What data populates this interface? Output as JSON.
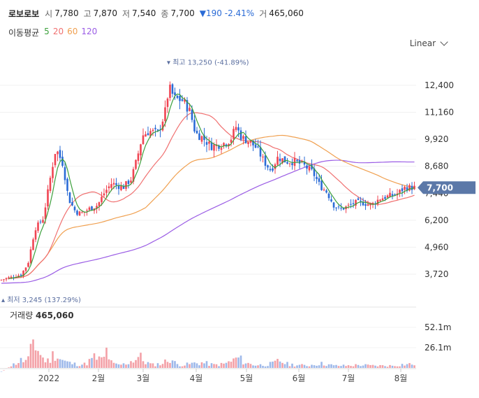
{
  "header": {
    "name": "로보로보",
    "open_label": "시",
    "open": "7,780",
    "high_label": "고",
    "high": "7,870",
    "low_label": "저",
    "low": "7,540",
    "close_label": "종",
    "close": "7,700",
    "change": "▼190 -2.41%",
    "volume_label": "거",
    "volume": "465,060"
  },
  "ma_legend": {
    "title": "이동평균",
    "items": [
      {
        "label": "5",
        "color": "#3ca03c"
      },
      {
        "label": "20",
        "color": "#f07070"
      },
      {
        "label": "60",
        "color": "#f0a050"
      },
      {
        "label": "120",
        "color": "#9b5de5"
      }
    ]
  },
  "scale_selector": "Linear",
  "price_tag": "7,700",
  "colors": {
    "up": "#f04452",
    "down": "#2a6bd6",
    "tag": "#5b78a8"
  },
  "chart_data": [
    {
      "type": "candlestick",
      "y_ticks": [
        "12,400",
        "11,160",
        "9,920",
        "8,680",
        "7,440",
        "6,200",
        "4,960",
        "3,720"
      ],
      "ylim": [
        3200,
        13700
      ],
      "x_ticks": [
        "2022",
        "2월",
        "3월",
        "4월",
        "5월",
        "6월",
        "7월",
        "8월"
      ],
      "annotations": {
        "high": "최고 13,250 (-41.89%)",
        "low": "최저 3,245 (137.29%)"
      },
      "last_price": 7700,
      "series_names": [
        "MA5",
        "MA20",
        "MA60",
        "MA120"
      ],
      "approx_close_path": [
        [
          0,
          3450
        ],
        [
          30,
          3700
        ],
        [
          40,
          4200
        ],
        [
          50,
          5800
        ],
        [
          62,
          6300
        ],
        [
          74,
          8500
        ],
        [
          80,
          9500
        ],
        [
          90,
          8800
        ],
        [
          98,
          7200
        ],
        [
          108,
          6600
        ],
        [
          116,
          6500
        ],
        [
          126,
          6700
        ],
        [
          140,
          6900
        ],
        [
          150,
          7500
        ],
        [
          160,
          7900
        ],
        [
          176,
          7700
        ],
        [
          188,
          8100
        ],
        [
          196,
          9000
        ],
        [
          204,
          10100
        ],
        [
          214,
          10300
        ],
        [
          226,
          10200
        ],
        [
          236,
          11100
        ],
        [
          242,
          12300
        ],
        [
          250,
          11800
        ],
        [
          262,
          11700
        ],
        [
          272,
          11200
        ],
        [
          280,
          10200
        ],
        [
          290,
          10000
        ],
        [
          302,
          9600
        ],
        [
          318,
          9700
        ],
        [
          330,
          9900
        ],
        [
          338,
          10500
        ],
        [
          346,
          10000
        ],
        [
          358,
          9800
        ],
        [
          368,
          9500
        ],
        [
          378,
          8900
        ],
        [
          388,
          8500
        ],
        [
          398,
          9100
        ],
        [
          410,
          8900
        ],
        [
          422,
          8900
        ],
        [
          436,
          8700
        ],
        [
          448,
          8400
        ],
        [
          458,
          7800
        ],
        [
          468,
          7500
        ],
        [
          478,
          6900
        ],
        [
          486,
          6700
        ],
        [
          496,
          6800
        ],
        [
          508,
          7000
        ],
        [
          520,
          7000
        ],
        [
          532,
          6900
        ],
        [
          544,
          7200
        ],
        [
          556,
          7300
        ],
        [
          568,
          7400
        ],
        [
          580,
          7700
        ],
        [
          592,
          7700
        ]
      ]
    },
    {
      "type": "bar",
      "title": "거래량",
      "value_label": "465,060",
      "y_ticks": [
        "52.1m",
        "26.1m"
      ],
      "ylim": [
        0,
        60
      ],
      "approx_volume_m": [
        [
          14,
          2
        ],
        [
          22,
          6
        ],
        [
          30,
          10
        ],
        [
          36,
          9
        ],
        [
          42,
          12
        ],
        [
          48,
          40
        ],
        [
          52,
          28
        ],
        [
          56,
          22
        ],
        [
          62,
          12
        ],
        [
          68,
          9
        ],
        [
          74,
          14
        ],
        [
          78,
          22
        ],
        [
          84,
          14
        ],
        [
          90,
          10
        ],
        [
          98,
          7
        ],
        [
          108,
          5
        ],
        [
          122,
          5
        ],
        [
          135,
          14
        ],
        [
          148,
          10
        ],
        [
          152,
          24
        ],
        [
          160,
          6
        ],
        [
          168,
          4
        ],
        [
          178,
          5
        ],
        [
          194,
          12
        ],
        [
          200,
          16
        ],
        [
          206,
          9
        ],
        [
          218,
          4
        ],
        [
          232,
          6
        ],
        [
          240,
          10
        ],
        [
          244,
          14
        ],
        [
          252,
          5
        ],
        [
          264,
          4
        ],
        [
          276,
          6
        ],
        [
          290,
          7
        ],
        [
          306,
          4
        ],
        [
          320,
          5
        ],
        [
          334,
          10
        ],
        [
          340,
          14
        ],
        [
          354,
          6
        ],
        [
          366,
          4
        ],
        [
          378,
          4
        ],
        [
          392,
          6
        ],
        [
          400,
          10
        ],
        [
          412,
          5
        ],
        [
          424,
          4
        ],
        [
          440,
          3
        ],
        [
          456,
          6
        ],
        [
          468,
          5
        ],
        [
          478,
          3
        ],
        [
          496,
          3
        ],
        [
          516,
          4
        ],
        [
          532,
          3
        ],
        [
          548,
          3
        ],
        [
          562,
          3
        ],
        [
          580,
          5
        ]
      ]
    }
  ]
}
